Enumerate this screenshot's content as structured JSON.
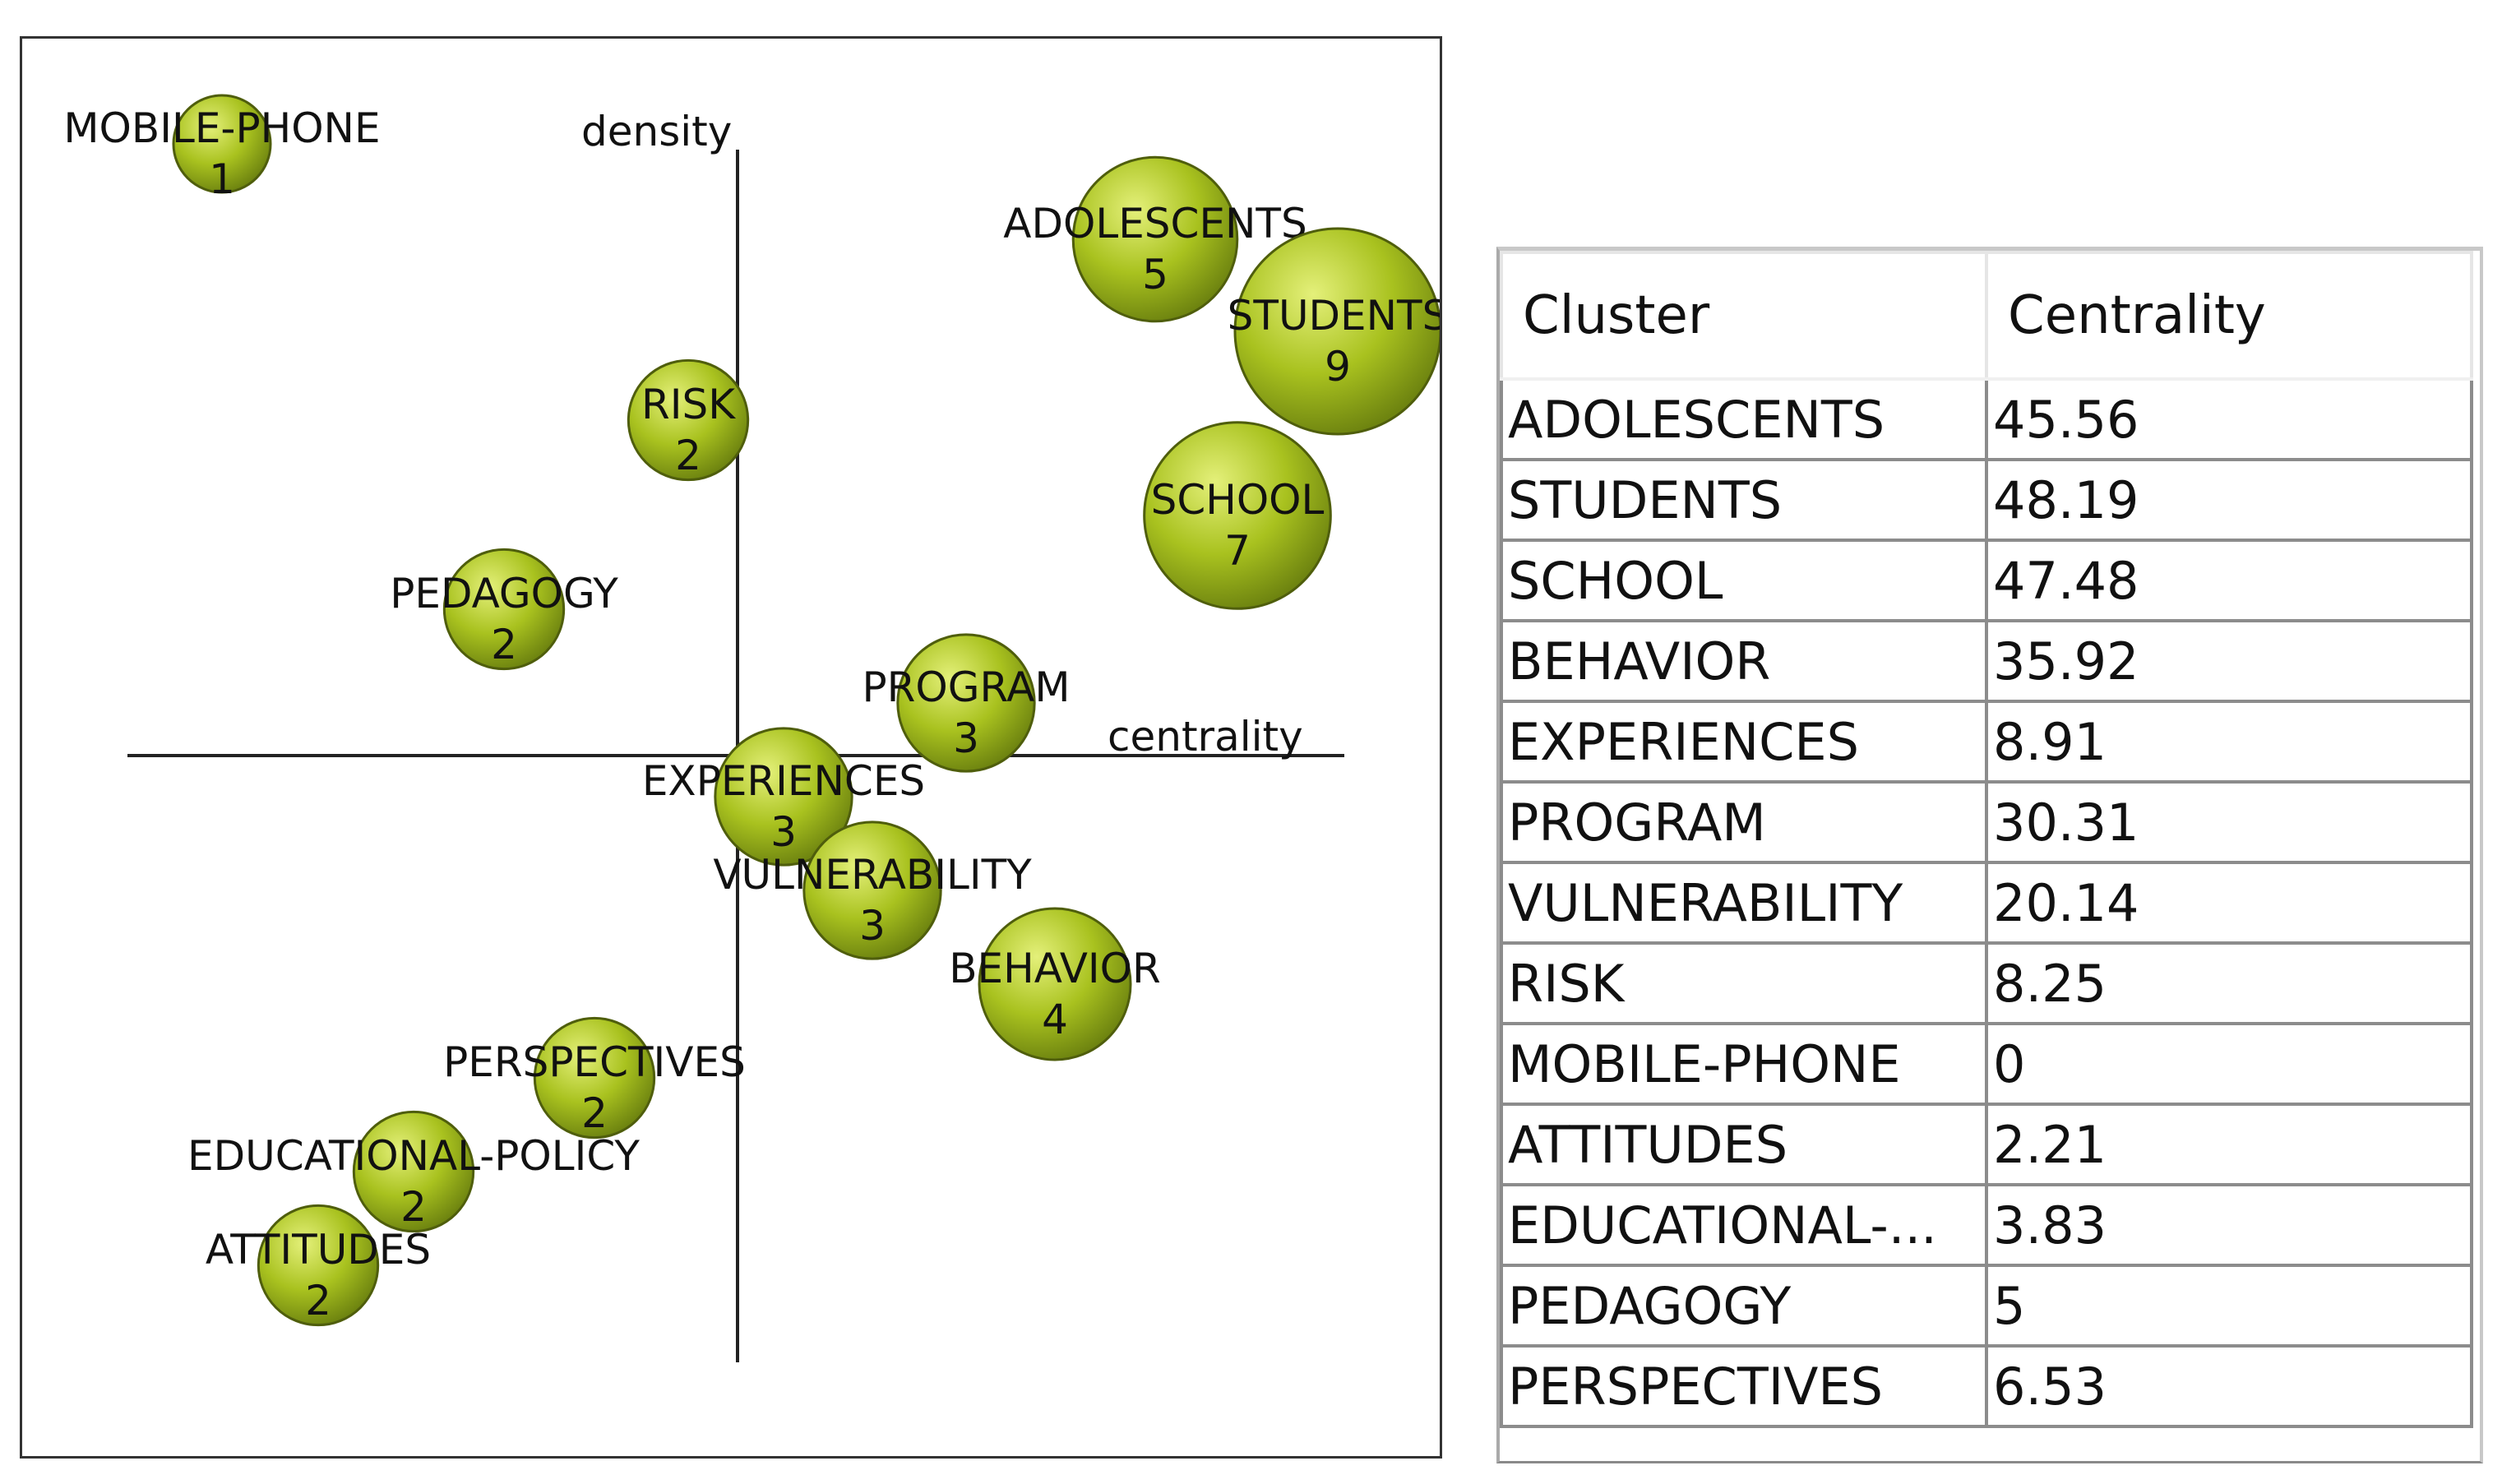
{
  "chart_data": {
    "type": "scatter",
    "subtype": "strategic-diagram",
    "xlabel": "centrality",
    "ylabel": "density",
    "points": [
      {
        "name": "MOBILE-PHONE",
        "count": 1,
        "centrality": 0,
        "density": 100
      },
      {
        "name": "ADOLESCENTS",
        "count": 5,
        "centrality": 45.56,
        "density": 82
      },
      {
        "name": "STUDENTS",
        "count": 9,
        "centrality": 48.19,
        "density": 68
      },
      {
        "name": "RISK",
        "count": 2,
        "centrality": 8.25,
        "density": 55
      },
      {
        "name": "SCHOOL",
        "count": 7,
        "centrality": 47.48,
        "density": 40
      },
      {
        "name": "PEDAGOGY",
        "count": 2,
        "centrality": 5,
        "density": 22
      },
      {
        "name": "PROGRAM",
        "count": 3,
        "centrality": 30.31,
        "density": 8
      },
      {
        "name": "EXPERIENCES",
        "count": 3,
        "centrality": 8.91,
        "density": -8
      },
      {
        "name": "VULNERABILITY",
        "count": 3,
        "centrality": 20.14,
        "density": -22
      },
      {
        "name": "BEHAVIOR",
        "count": 4,
        "centrality": 35.92,
        "density": -36
      },
      {
        "name": "PERSPECTIVES",
        "count": 2,
        "centrality": 6.53,
        "density": -50
      },
      {
        "name": "EDUCATIONAL-POLICY",
        "count": 2,
        "centrality": 3.83,
        "density": -64
      },
      {
        "name": "ATTITUDES",
        "count": 2,
        "centrality": 2.21,
        "density": -78
      }
    ],
    "bubble_color": "#a4be1e",
    "grid": false,
    "legend": "none"
  },
  "table": {
    "headers": [
      "Cluster",
      "Centrality"
    ],
    "rows": [
      [
        "ADOLESCENTS",
        "45.56"
      ],
      [
        "STUDENTS",
        "48.19"
      ],
      [
        "SCHOOL",
        "47.48"
      ],
      [
        "BEHAVIOR",
        "35.92"
      ],
      [
        "EXPERIENCES",
        "8.91"
      ],
      [
        "PROGRAM",
        "30.31"
      ],
      [
        "VULNERABILITY",
        "20.14"
      ],
      [
        "RISK",
        "8.25"
      ],
      [
        "MOBILE-PHONE",
        "0"
      ],
      [
        "ATTITUDES",
        "2.21"
      ],
      [
        "EDUCATIONAL-...",
        "3.83"
      ],
      [
        "PEDAGOGY",
        "5"
      ],
      [
        "PERSPECTIVES",
        "6.53"
      ]
    ]
  }
}
